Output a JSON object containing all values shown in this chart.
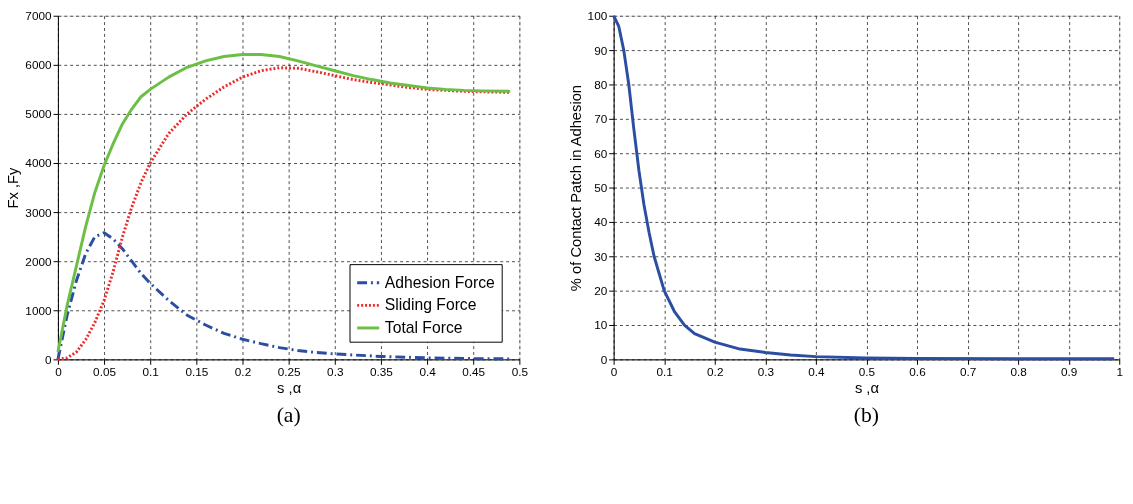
{
  "chart_data": [
    {
      "type": "line",
      "xlabel": "s ,α",
      "ylabel": "Fx ,Fy",
      "annotations": [
        "(a)"
      ],
      "xlim": [
        0,
        0.5
      ],
      "xticks": [
        0,
        0.05,
        0.1,
        0.15,
        0.2,
        0.25,
        0.3,
        0.35,
        0.4,
        0.45,
        0.5
      ],
      "ylim": [
        0,
        7000
      ],
      "yticks": [
        0,
        1000,
        2000,
        3000,
        4000,
        5000,
        6000,
        7000
      ],
      "grid": true,
      "legend": "bottom right",
      "series": [
        {
          "name": "Adhesion Force",
          "color": "#2b4ea3",
          "line_style": "dashed",
          "x": [
            0,
            0.01,
            0.02,
            0.03,
            0.04,
            0.05,
            0.06,
            0.07,
            0.08,
            0.09,
            0.1,
            0.12,
            0.14,
            0.16,
            0.18,
            0.2,
            0.22,
            0.24,
            0.26,
            0.28,
            0.3,
            0.35,
            0.4,
            0.45,
            0.49
          ],
          "values": [
            0,
            900,
            1600,
            2150,
            2500,
            2580,
            2450,
            2250,
            2000,
            1750,
            1550,
            1200,
            900,
            700,
            530,
            410,
            320,
            240,
            180,
            140,
            110,
            60,
            30,
            15,
            10
          ]
        },
        {
          "name": "Sliding Force",
          "color": "#ee2a2a",
          "line_style": "dotted",
          "x": [
            0,
            0.01,
            0.02,
            0.03,
            0.04,
            0.05,
            0.06,
            0.07,
            0.08,
            0.09,
            0.1,
            0.11,
            0.12,
            0.14,
            0.16,
            0.18,
            0.2,
            0.22,
            0.24,
            0.26,
            0.28,
            0.3,
            0.32,
            0.34,
            0.36,
            0.38,
            0.4,
            0.42,
            0.44,
            0.46,
            0.49
          ],
          "values": [
            0,
            30,
            150,
            400,
            750,
            1200,
            1800,
            2500,
            3100,
            3600,
            4000,
            4300,
            4600,
            5000,
            5300,
            5550,
            5750,
            5880,
            5940,
            5930,
            5860,
            5780,
            5700,
            5640,
            5590,
            5540,
            5500,
            5480,
            5460,
            5450,
            5440
          ]
        },
        {
          "name": "Total Force",
          "color": "#6cbf45",
          "line_style": "solid",
          "x": [
            0,
            0.01,
            0.02,
            0.03,
            0.04,
            0.05,
            0.06,
            0.07,
            0.08,
            0.09,
            0.1,
            0.12,
            0.14,
            0.16,
            0.18,
            0.2,
            0.22,
            0.24,
            0.26,
            0.28,
            0.3,
            0.32,
            0.34,
            0.36,
            0.38,
            0.4,
            0.42,
            0.44,
            0.46,
            0.49
          ],
          "values": [
            150,
            1100,
            1900,
            2700,
            3400,
            3950,
            4400,
            4800,
            5100,
            5350,
            5500,
            5750,
            5950,
            6080,
            6170,
            6210,
            6210,
            6170,
            6080,
            5980,
            5880,
            5780,
            5700,
            5630,
            5580,
            5530,
            5500,
            5480,
            5470,
            5460
          ]
        }
      ]
    },
    {
      "type": "line",
      "xlabel": "s ,α",
      "ylabel": "% of Contact Patch in Adhesion",
      "annotations": [
        "(b)"
      ],
      "xlim": [
        0,
        1
      ],
      "xticks": [
        0,
        0.1,
        0.2,
        0.3,
        0.4,
        0.5,
        0.6,
        0.7,
        0.8,
        0.9,
        1
      ],
      "ylim": [
        0,
        100
      ],
      "yticks": [
        0,
        10,
        20,
        30,
        40,
        50,
        60,
        70,
        80,
        90,
        100
      ],
      "grid": true,
      "series": [
        {
          "color": "#2b4ea3",
          "line_style": "solid",
          "x": [
            0,
            0.01,
            0.02,
            0.03,
            0.04,
            0.05,
            0.06,
            0.07,
            0.08,
            0.09,
            0.1,
            0.12,
            0.14,
            0.16,
            0.2,
            0.25,
            0.3,
            0.35,
            0.4,
            0.5,
            0.6,
            0.8,
            0.99
          ],
          "values": [
            100,
            97,
            90,
            80,
            67,
            55,
            45,
            37,
            30,
            25,
            20,
            14,
            10,
            7.5,
            5,
            3,
            2,
            1.3,
            0.8,
            0.4,
            0.3,
            0.2,
            0.2
          ]
        }
      ]
    }
  ]
}
